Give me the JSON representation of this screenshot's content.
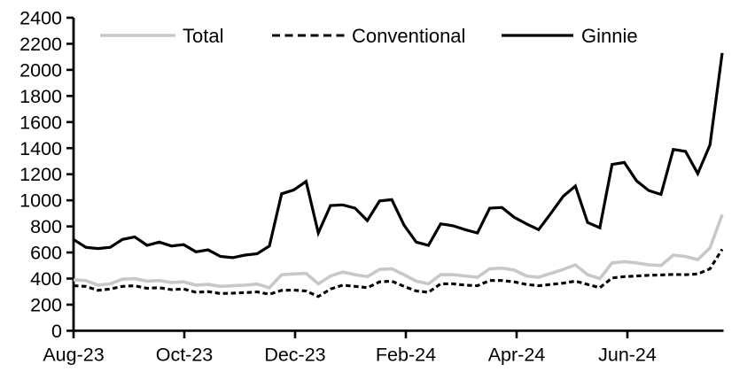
{
  "chart_data": {
    "type": "line",
    "title": "",
    "xlabel": "",
    "ylabel": "",
    "grid": false,
    "legend_position": "top",
    "background_color": "#ffffff",
    "axis_color": "#000000",
    "x_axis": {
      "tick_labels": [
        "Aug-23",
        "Oct-23",
        "Dec-23",
        "Feb-24",
        "Apr-24",
        "Jun-24"
      ],
      "frequency": "weekly",
      "range_note": "weekly points from Aug-23 through early Aug-24"
    },
    "y_axis": {
      "min": 0,
      "max": 2400,
      "step": 200,
      "tick_labels": [
        "0",
        "200",
        "400",
        "600",
        "800",
        "1000",
        "1200",
        "1400",
        "1600",
        "1800",
        "2000",
        "2200",
        "2400"
      ]
    },
    "series": [
      {
        "name": "Total",
        "color": "#c8c8c8",
        "style": "solid",
        "width": 3.6,
        "values": [
          390,
          385,
          350,
          360,
          395,
          400,
          380,
          385,
          370,
          375,
          350,
          355,
          340,
          345,
          350,
          358,
          330,
          430,
          435,
          440,
          360,
          420,
          450,
          430,
          415,
          470,
          475,
          430,
          380,
          360,
          430,
          430,
          420,
          410,
          475,
          480,
          465,
          420,
          410,
          440,
          470,
          505,
          430,
          400,
          520,
          530,
          520,
          505,
          500,
          580,
          570,
          545,
          635,
          890
        ]
      },
      {
        "name": "Conventional",
        "color": "#000000",
        "style": "dashed",
        "width": 3.1,
        "values": [
          345,
          340,
          310,
          320,
          340,
          345,
          325,
          330,
          315,
          320,
          295,
          300,
          285,
          288,
          292,
          298,
          280,
          310,
          312,
          305,
          262,
          320,
          350,
          340,
          330,
          375,
          380,
          340,
          305,
          295,
          360,
          360,
          350,
          345,
          385,
          385,
          375,
          355,
          345,
          355,
          365,
          380,
          355,
          330,
          405,
          415,
          420,
          425,
          428,
          432,
          430,
          435,
          475,
          625
        ]
      },
      {
        "name": "Ginnie",
        "color": "#000000",
        "style": "solid",
        "width": 3.2,
        "values": [
          700,
          640,
          630,
          640,
          700,
          720,
          655,
          680,
          650,
          660,
          605,
          620,
          570,
          560,
          580,
          590,
          650,
          1050,
          1080,
          1145,
          750,
          960,
          965,
          940,
          845,
          995,
          1005,
          810,
          680,
          655,
          820,
          805,
          775,
          750,
          940,
          945,
          870,
          820,
          775,
          900,
          1030,
          1110,
          830,
          790,
          1275,
          1290,
          1150,
          1075,
          1045,
          1390,
          1375,
          1205,
          1425,
          2130
        ]
      }
    ],
    "legend": {
      "entries": [
        "Total",
        "Conventional",
        "Ginnie"
      ]
    }
  }
}
